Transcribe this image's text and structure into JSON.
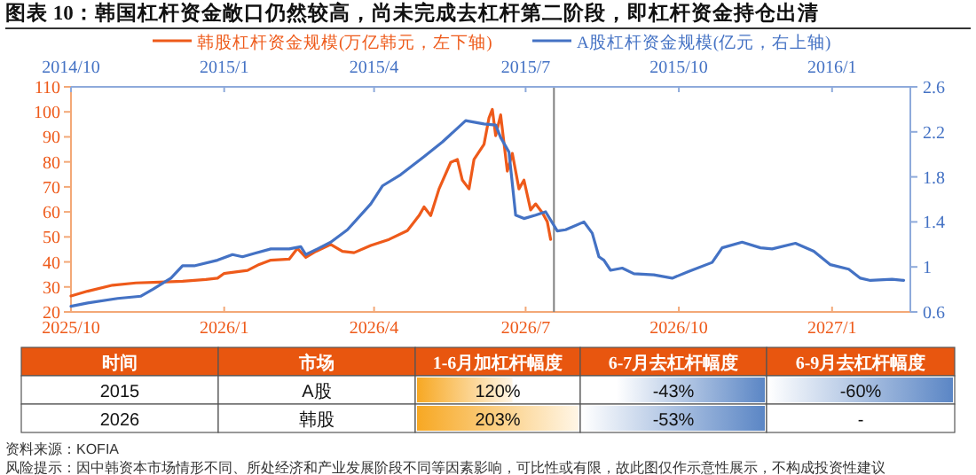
{
  "chart_data": [
    {
      "type": "line",
      "title": "图表 10：韩国杠杆资金敞口仍然较高，尚未完成去杠杆第二阶段，即杠杆资金持仓出清",
      "legend": "top",
      "grid": false,
      "line_style": "solid",
      "xlim": [
        "2025-10-01",
        "2027-02-17"
      ],
      "xticks": [
        {
          "value": "2025-10-01",
          "label": "2025/10"
        },
        {
          "value": "2026-01-01",
          "label": "2026/1"
        },
        {
          "value": "2026-04-01",
          "label": "2026/4"
        },
        {
          "value": "2026-07-01",
          "label": "2026/7"
        },
        {
          "value": "2026-10-01",
          "label": "2026/10"
        },
        {
          "value": "2027-01-01",
          "label": "2027/1"
        }
      ],
      "ylim": [
        20,
        110
      ],
      "yticks": [
        20,
        30,
        40,
        50,
        60,
        70,
        80,
        90,
        100,
        110
      ],
      "ref_lines": [
        {
          "axis": "x",
          "value": "2026-07-18",
          "color": "#808080"
        }
      ],
      "series": [
        {
          "name": "韩股杠杆资金规模(万亿韩元，左下轴)",
          "color": "#ee5a1a",
          "x": [
            "2025-10-01",
            "2025-10-11",
            "2025-10-26",
            "2025-11-09",
            "2025-11-23",
            "2025-12-07",
            "2025-12-21",
            "2025-12-28",
            "2026-01-01",
            "2026-01-15",
            "2026-01-22",
            "2026-01-29",
            "2026-02-09",
            "2026-02-14",
            "2026-02-19",
            "2026-02-25",
            "2026-03-06",
            "2026-03-13",
            "2026-03-20",
            "2026-03-30",
            "2026-04-10",
            "2026-04-21",
            "2026-04-28",
            "2026-05-01",
            "2026-05-05",
            "2026-05-10",
            "2026-05-17",
            "2026-05-21",
            "2026-05-24",
            "2026-05-28",
            "2026-05-31",
            "2026-06-06",
            "2026-06-09",
            "2026-06-11",
            "2026-06-13",
            "2026-06-16",
            "2026-06-20",
            "2026-06-23",
            "2026-06-27",
            "2026-06-30",
            "2026-07-04",
            "2026-07-07",
            "2026-07-11",
            "2026-07-14",
            "2026-07-16"
          ],
          "values": [
            26.4,
            28.3,
            30.7,
            31.6,
            31.9,
            32.3,
            33,
            33.5,
            35.4,
            36.6,
            39,
            40.7,
            41.1,
            45.4,
            41.8,
            44.2,
            47,
            44.2,
            43.7,
            46.6,
            49,
            52.5,
            58.5,
            62,
            58.5,
            69.2,
            79.8,
            81,
            72.7,
            69.2,
            81,
            87,
            97.6,
            101,
            90.5,
            98.8,
            76.3,
            83.4,
            69.2,
            72.7,
            60.8,
            63.2,
            59.7,
            56.1,
            49
          ]
        }
      ]
    },
    {
      "type": "line",
      "legend": "top",
      "grid": false,
      "line_style": "solid",
      "xlim": [
        "2014-10-01",
        "2016-02-17"
      ],
      "xticks": [
        {
          "value": "2014-10-01",
          "label": "2014/10"
        },
        {
          "value": "2015-01-01",
          "label": "2015/1"
        },
        {
          "value": "2015-04-01",
          "label": "2015/4"
        },
        {
          "value": "2015-07-01",
          "label": "2015/7"
        },
        {
          "value": "2015-10-01",
          "label": "2015/10"
        },
        {
          "value": "2016-01-01",
          "label": "2016/1"
        }
      ],
      "ylim": [
        0.6,
        2.6
      ],
      "yticks": [
        0.6,
        1,
        1.4,
        1.8,
        2.2,
        2.6
      ],
      "series": [
        {
          "name": "A股杠杆资金规模(亿元，右上轴)",
          "color": "#4472c4",
          "x": [
            "2014-10-01",
            "2014-10-11",
            "2014-10-29",
            "2014-11-12",
            "2014-11-19",
            "2014-11-30",
            "2014-12-07",
            "2014-12-14",
            "2014-12-28",
            "2015-01-06",
            "2015-01-12",
            "2015-01-19",
            "2015-01-29",
            "2015-02-09",
            "2015-02-16",
            "2015-02-19",
            "2015-02-26",
            "2015-03-06",
            "2015-03-16",
            "2015-03-30",
            "2015-04-06",
            "2015-04-17",
            "2015-05-01",
            "2015-05-12",
            "2015-05-26",
            "2015-06-06",
            "2015-06-13",
            "2015-06-16",
            "2015-06-21",
            "2015-06-25",
            "2015-06-30",
            "2015-07-07",
            "2015-07-13",
            "2015-07-20",
            "2015-07-25",
            "2015-08-05",
            "2015-08-10",
            "2015-08-14",
            "2015-08-17",
            "2015-08-21",
            "2015-08-28",
            "2015-09-04",
            "2015-09-16",
            "2015-09-27",
            "2015-10-07",
            "2015-10-21",
            "2015-10-27",
            "2015-11-08",
            "2015-11-19",
            "2015-11-26",
            "2015-12-10",
            "2015-12-21",
            "2015-12-31",
            "2016-01-11",
            "2016-01-18",
            "2016-01-24",
            "2016-02-06",
            "2016-02-13"
          ],
          "values": [
            0.65,
            0.68,
            0.72,
            0.74,
            0.8,
            0.9,
            1.01,
            1.01,
            1.06,
            1.11,
            1.09,
            1.12,
            1.16,
            1.16,
            1.18,
            1.11,
            1.16,
            1.22,
            1.33,
            1.56,
            1.72,
            1.82,
            1.98,
            2.11,
            2.3,
            2.27,
            2.26,
            2.15,
            2.02,
            1.46,
            1.43,
            1.46,
            1.49,
            1.32,
            1.33,
            1.4,
            1.3,
            1.09,
            1.06,
            0.97,
            0.99,
            0.94,
            0.93,
            0.9,
            0.96,
            1.04,
            1.17,
            1.22,
            1.17,
            1.16,
            1.21,
            1.14,
            1.02,
            0.98,
            0.9,
            0.88,
            0.89,
            0.88
          ]
        }
      ]
    },
    {
      "type": "other",
      "categories": [
        "时间",
        "市场",
        "1-6月加杠杆幅度",
        "6-7月去杠杆幅度",
        "6-9月去杠杆幅度"
      ],
      "cell_labels": [
        [
          "2015",
          "A股",
          "120%",
          "-43%",
          "-60%"
        ],
        [
          "2026",
          "韩股",
          "203%",
          "-53%",
          "-"
        ]
      ],
      "annotations": [
        "资料来源：KOFIA",
        "风险提示：因中韩资本市场情形不同、所处经济和产业发展阶段不同等因素影响，可比性或有限，故此图仅作示意性展示，不构成投资性建议"
      ]
    }
  ]
}
